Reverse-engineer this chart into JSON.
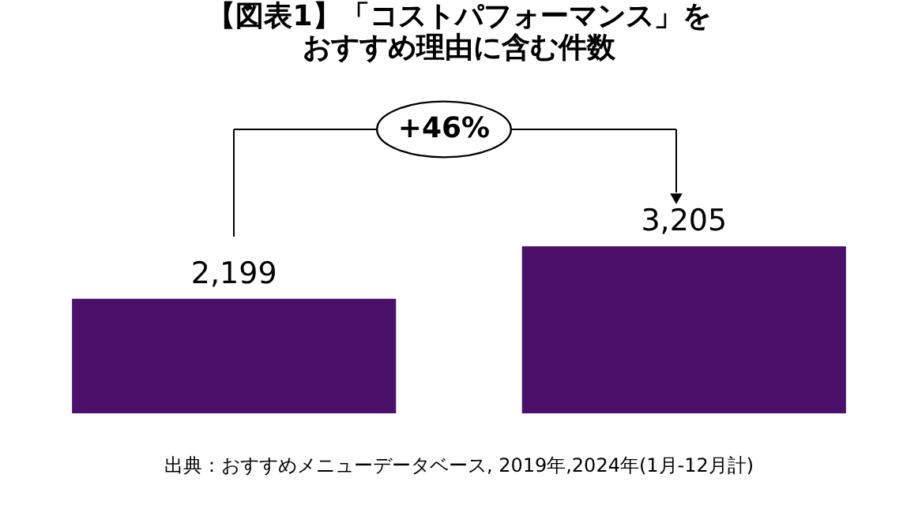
{
  "chart_data": {
    "type": "bar",
    "title": "【図表1】「コストパフォーマンス」を",
    "subtitle": "おすすめ理由に含む件数",
    "categories": [
      null,
      null
    ],
    "values": [
      2199,
      3205
    ],
    "value_labels": [
      "2,199",
      "3,205"
    ],
    "color": "#4b1069",
    "tick_labels": false,
    "grid": false,
    "annotations": [
      "+46%",
      "出典：おすすめメニューデータベース, 2019年,2024年(1月-12月計)"
    ]
  }
}
